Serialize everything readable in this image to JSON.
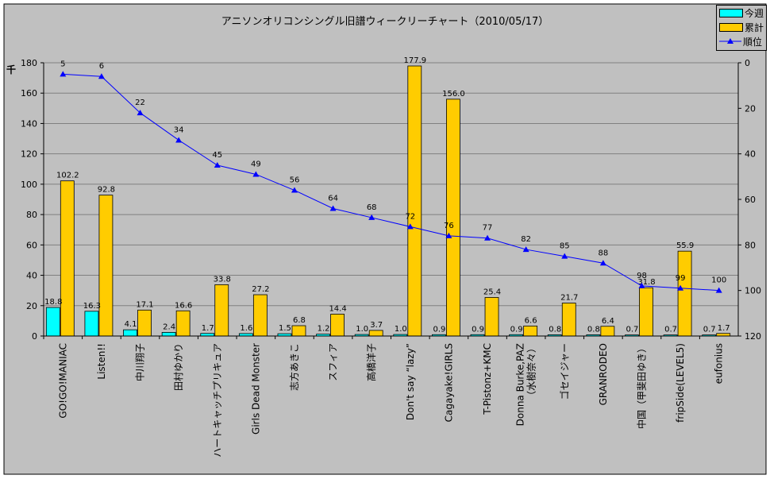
{
  "chart_data": {
    "type": "bar",
    "title": "アニソンオリコンシングル旧譜ウィークリーチャート（2010/05/17）",
    "ylabel": "千",
    "ylim": [
      0,
      180
    ],
    "yticks": [
      0,
      20,
      40,
      60,
      80,
      100,
      120,
      140,
      160,
      180
    ],
    "y2lim": [
      0,
      120
    ],
    "y2reversed": true,
    "y2ticks": [
      0,
      20,
      40,
      60,
      80,
      100,
      120
    ],
    "grid": true,
    "legend_position": "top-right",
    "categories": [
      "GO!GO!MANIAC",
      "Listen!!",
      "中川翔子",
      "田村ゆかり",
      "ハートキャッチプリキュア",
      "Girls Dead Monster",
      "志方あきこ",
      "スフィア",
      "高橋洋子",
      "Don't say “lazy”",
      "Cagayake!GIRLS",
      "T-Pistonz+KMC",
      "Donna Burke,PAZ\n（水樹奈々）",
      "ゴセイジャー",
      "GRANRODEO",
      "中国（甲斐田ゆき）",
      "fripSide(LEVEL5)",
      "eufonius"
    ],
    "series": [
      {
        "name": "今週",
        "type": "bar",
        "color": "#00ffff",
        "values": [
          18.8,
          16.3,
          4.1,
          2.4,
          1.7,
          1.6,
          1.5,
          1.2,
          1.0,
          1.0,
          0.9,
          0.9,
          0.9,
          0.8,
          0.8,
          0.7,
          0.7,
          0.7
        ]
      },
      {
        "name": "累計",
        "type": "bar",
        "color": "#ffcc00",
        "values": [
          102.2,
          92.8,
          17.1,
          16.6,
          33.8,
          27.2,
          6.8,
          14.4,
          3.7,
          177.9,
          156.0,
          25.4,
          6.6,
          21.7,
          6.4,
          31.8,
          55.9,
          1.7
        ]
      },
      {
        "name": "順位",
        "type": "line",
        "axis": "right",
        "color": "#0000ff",
        "values": [
          5,
          6,
          22,
          34,
          45,
          49,
          56,
          64,
          68,
          72,
          76,
          77,
          82,
          85,
          88,
          98,
          99,
          100
        ]
      }
    ]
  }
}
